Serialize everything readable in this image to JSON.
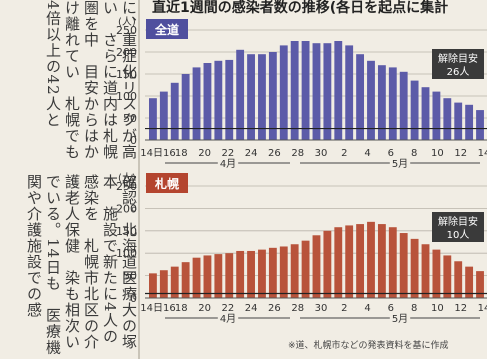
{
  "article": {
    "top": "に、重症化リスクが高い　さらに道内は札幌圏を中　目安からはかけ離れてい　札幌でも4倍以上の42人と",
    "bottom": "確認。北海道医療大の塚本　施設で新たに4人の感染を　札幌市北区の介護老人保健　染も相次いでいる。14日も　医療機関や介護施設での感"
  },
  "title": "直近1週間の感染者数の推移(各日を起点に集計",
  "footnote": "※道、札幌市などの発表資料を基に作成",
  "colors": {
    "top_bar": "#5c5ba8",
    "bottom_bar": "#b8533b",
    "top_label_bg": "#4f4f9e",
    "bottom_label_bg": "#b4452f",
    "callout_bg": "#3a3a3a"
  },
  "chart_data": [
    {
      "type": "bar",
      "panel_label": "全道",
      "unit_label": "(人)",
      "ylim": [
        0,
        250
      ],
      "yticks": [
        0,
        50,
        100,
        150,
        200,
        250
      ],
      "threshold": {
        "label": "解除目安",
        "value_label": "26人",
        "value": 26
      },
      "values": [
        95,
        110,
        130,
        150,
        165,
        175,
        180,
        182,
        205,
        195,
        195,
        200,
        215,
        225,
        225,
        220,
        220,
        225,
        215,
        195,
        180,
        170,
        165,
        155,
        135,
        120,
        110,
        95,
        85,
        80,
        68
      ],
      "xtick_labels": [
        "14日16",
        "18",
        "20",
        "22",
        "24",
        "26",
        "28",
        "30",
        "2",
        "4",
        "6",
        "8",
        "10",
        "12",
        "14"
      ],
      "month_labels": [
        "4月",
        "5月"
      ]
    },
    {
      "type": "bar",
      "panel_label": "札幌",
      "unit_label": "(人)",
      "ylim": [
        0,
        250
      ],
      "yticks": [
        0,
        50,
        100,
        150,
        200,
        250
      ],
      "threshold": {
        "label": "解除目安",
        "value_label": "10人",
        "value": 10
      },
      "values": [
        55,
        62,
        70,
        80,
        90,
        95,
        98,
        100,
        105,
        105,
        108,
        112,
        115,
        120,
        128,
        140,
        150,
        158,
        162,
        165,
        170,
        165,
        158,
        145,
        132,
        120,
        108,
        95,
        82,
        70,
        60
      ],
      "xtick_labels": [
        "14日16",
        "18",
        "20",
        "22",
        "24",
        "26",
        "28",
        "30",
        "2",
        "4",
        "6",
        "8",
        "10",
        "12",
        "14"
      ],
      "month_labels": [
        "4月",
        "5月"
      ]
    }
  ]
}
